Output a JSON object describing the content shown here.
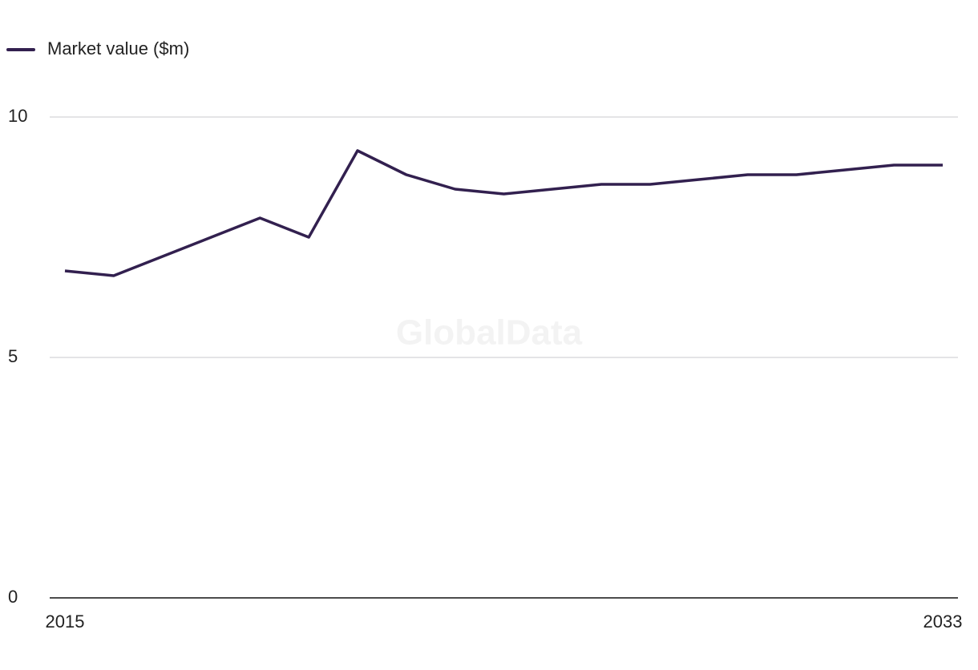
{
  "chart_data": {
    "type": "line",
    "x": [
      2015,
      2016,
      2017,
      2018,
      2019,
      2020,
      2021,
      2022,
      2023,
      2024,
      2025,
      2026,
      2027,
      2028,
      2029,
      2030,
      2031,
      2032,
      2033
    ],
    "series": [
      {
        "name": "Market value ($m)",
        "color": "#32204f",
        "values": [
          6.8,
          6.7,
          7.1,
          7.5,
          7.9,
          7.5,
          9.3,
          8.8,
          8.5,
          8.4,
          8.5,
          8.6,
          8.6,
          8.7,
          8.8,
          8.8,
          8.9,
          9.0,
          9.0
        ]
      }
    ],
    "xlim": [
      2015,
      2033
    ],
    "xticks": [
      2015,
      2033
    ],
    "ylim": [
      0,
      10
    ],
    "yticks": [
      0,
      5,
      10
    ],
    "grid": true,
    "legend": "top-left",
    "watermark": "GlobalData"
  }
}
